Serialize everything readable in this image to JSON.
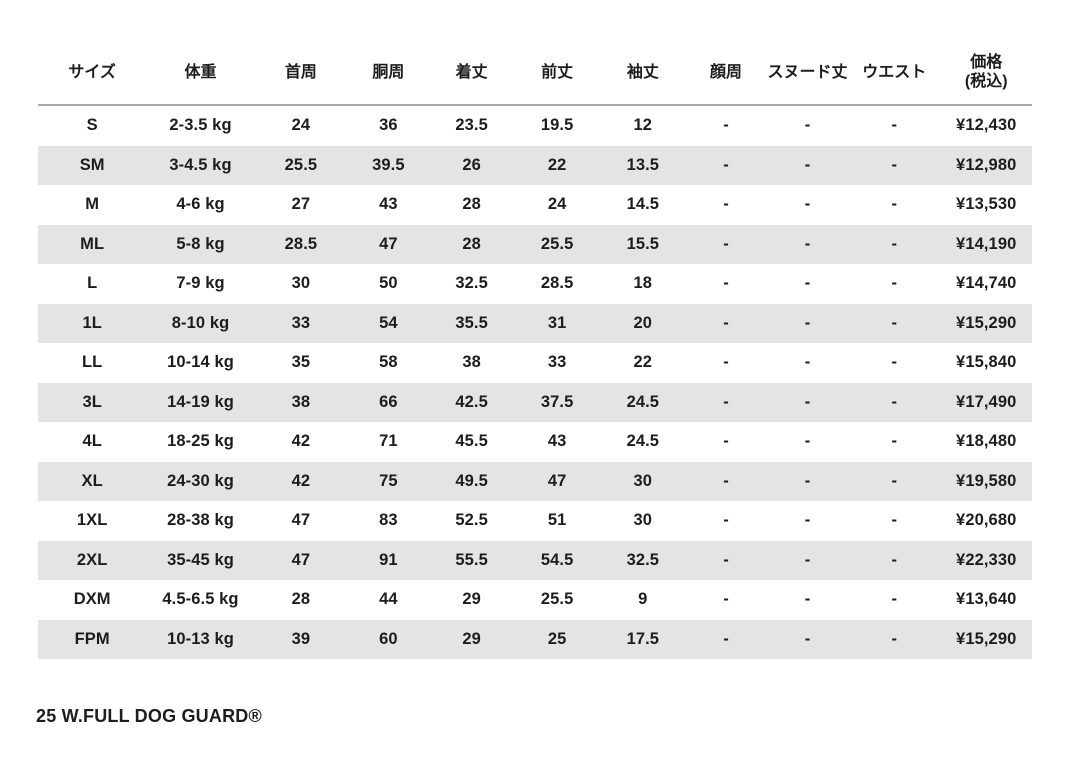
{
  "page": {
    "background": "#ffffff",
    "text_color": "#1d1d1f",
    "alt_row_color": "#e4e4e4",
    "divider_color": "#a6a6a6"
  },
  "size_chart": {
    "columns": [
      "サイズ",
      "体重",
      "首周",
      "胴周",
      "着丈",
      "前丈",
      "袖丈",
      "顔周",
      "スヌード丈",
      "ウエスト",
      "価格\n(税込)"
    ],
    "rows": [
      [
        "S",
        "2-3.5 kg",
        "24",
        "36",
        "23.5",
        "19.5",
        "12",
        "-",
        "-",
        "-",
        "¥12,430"
      ],
      [
        "SM",
        "3-4.5 kg",
        "25.5",
        "39.5",
        "26",
        "22",
        "13.5",
        "-",
        "-",
        "-",
        "¥12,980"
      ],
      [
        "M",
        "4-6 kg",
        "27",
        "43",
        "28",
        "24",
        "14.5",
        "-",
        "-",
        "-",
        "¥13,530"
      ],
      [
        "ML",
        "5-8 kg",
        "28.5",
        "47",
        "28",
        "25.5",
        "15.5",
        "-",
        "-",
        "-",
        "¥14,190"
      ],
      [
        "L",
        "7-9 kg",
        "30",
        "50",
        "32.5",
        "28.5",
        "18",
        "-",
        "-",
        "-",
        "¥14,740"
      ],
      [
        "1L",
        "8-10 kg",
        "33",
        "54",
        "35.5",
        "31",
        "20",
        "-",
        "-",
        "-",
        "¥15,290"
      ],
      [
        "LL",
        "10-14 kg",
        "35",
        "58",
        "38",
        "33",
        "22",
        "-",
        "-",
        "-",
        "¥15,840"
      ],
      [
        "3L",
        "14-19 kg",
        "38",
        "66",
        "42.5",
        "37.5",
        "24.5",
        "-",
        "-",
        "-",
        "¥17,490"
      ],
      [
        "4L",
        "18-25 kg",
        "42",
        "71",
        "45.5",
        "43",
        "24.5",
        "-",
        "-",
        "-",
        "¥18,480"
      ],
      [
        "XL",
        "24-30 kg",
        "42",
        "75",
        "49.5",
        "47",
        "30",
        "-",
        "-",
        "-",
        "¥19,580"
      ],
      [
        "1XL",
        "28-38 kg",
        "47",
        "83",
        "52.5",
        "51",
        "30",
        "-",
        "-",
        "-",
        "¥20,680"
      ],
      [
        "2XL",
        "35-45 kg",
        "47",
        "91",
        "55.5",
        "54.5",
        "32.5",
        "-",
        "-",
        "-",
        "¥22,330"
      ],
      [
        "DXM",
        "4.5-6.5 kg",
        "28",
        "44",
        "29",
        "25.5",
        "9",
        "-",
        "-",
        "-",
        "¥13,640"
      ],
      [
        "FPM",
        "10-13 kg",
        "39",
        "60",
        "29",
        "25",
        "17.5",
        "-",
        "-",
        "-",
        "¥15,290"
      ]
    ]
  },
  "footer": {
    "product_name": "25 W.FULL DOG GUARD®"
  }
}
